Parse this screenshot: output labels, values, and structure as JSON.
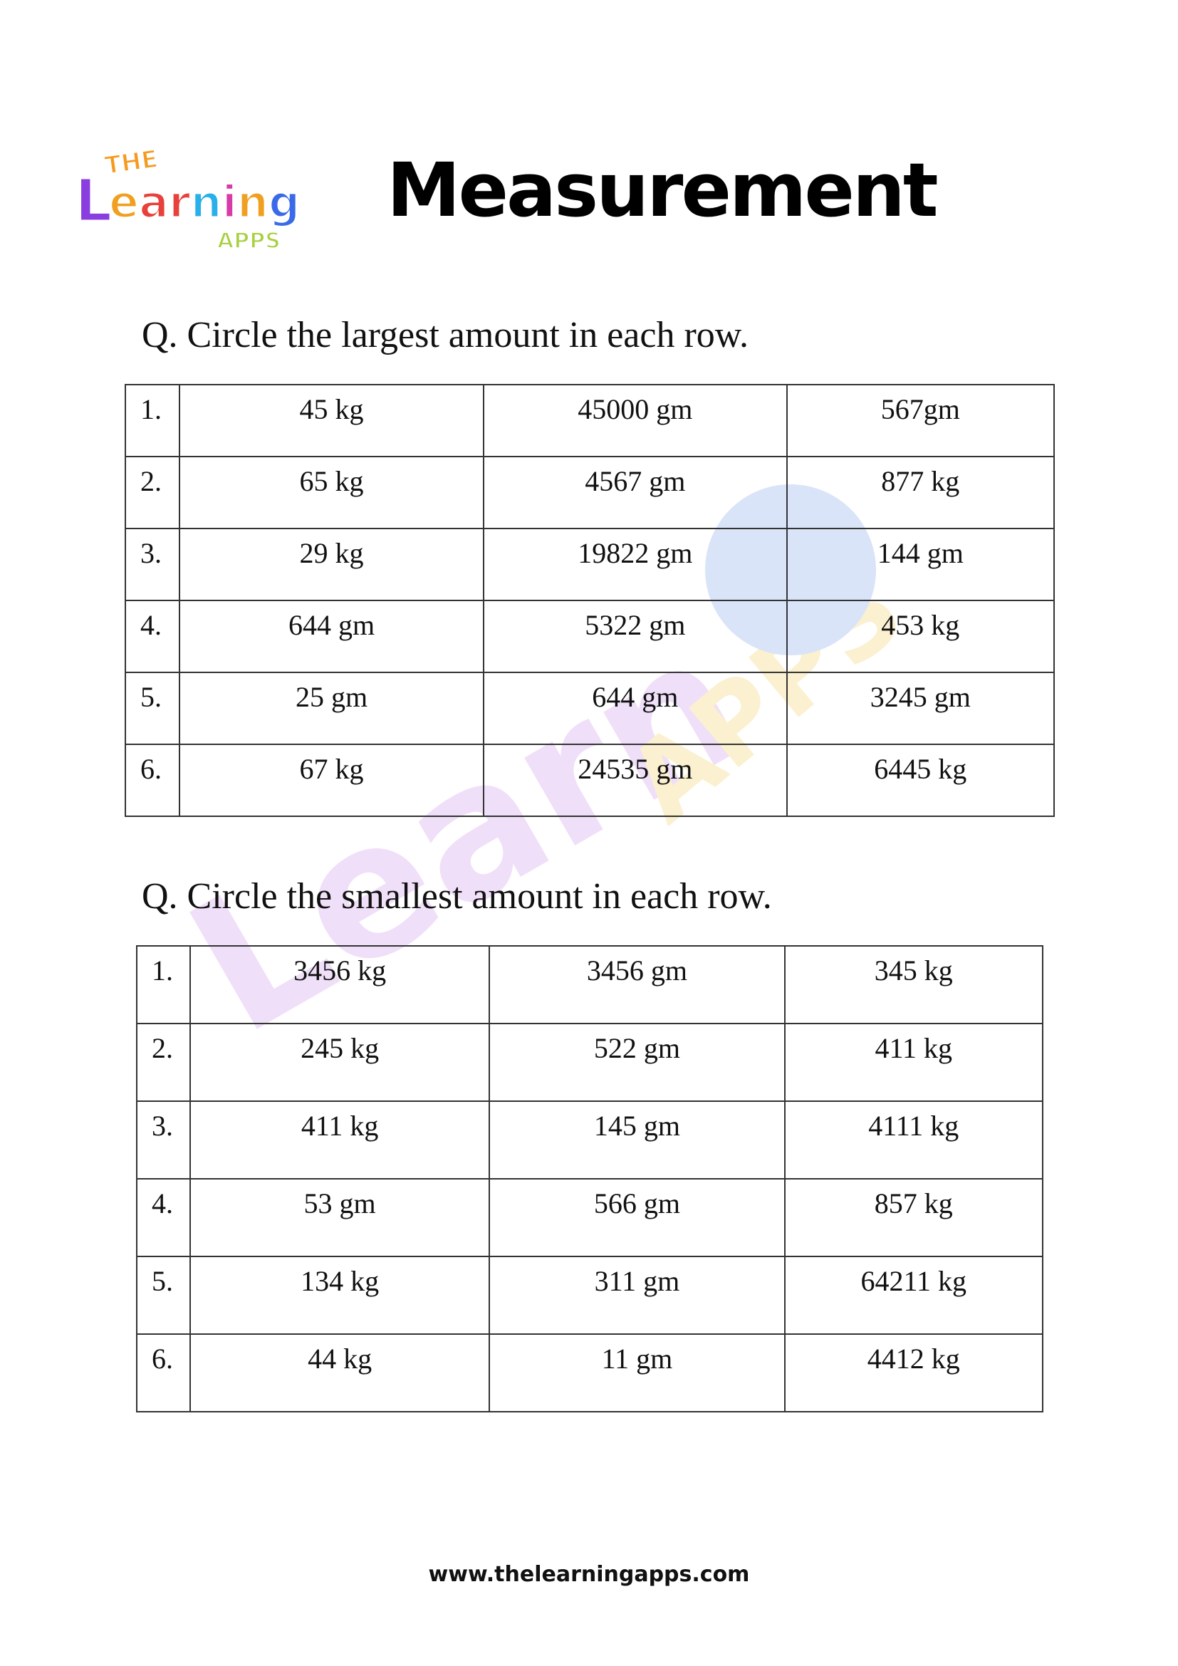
{
  "header": {
    "logo_text": {
      "top": "THE",
      "middle": "Learning",
      "bottom": "APPS"
    },
    "title": "Measurement"
  },
  "section1": {
    "question": "Q. Circle the largest amount in each row.",
    "rows": [
      [
        "1.",
        "45 kg",
        "45000 gm",
        "567gm"
      ],
      [
        "2.",
        "65 kg",
        "4567 gm",
        "877 kg"
      ],
      [
        "3.",
        "29 kg",
        "19822 gm",
        "144 gm"
      ],
      [
        "4.",
        "644 gm",
        "5322 gm",
        "453 kg"
      ],
      [
        "5.",
        "25 gm",
        "644 gm",
        "3245 gm"
      ],
      [
        "6.",
        "67 kg",
        "24535 gm",
        "6445 kg"
      ]
    ]
  },
  "section2": {
    "question": "Q. Circle the smallest amount in each row.",
    "rows": [
      [
        "1.",
        "3456 kg",
        "3456 gm",
        "345 kg"
      ],
      [
        "2.",
        "245 kg",
        "522 gm",
        "411 kg"
      ],
      [
        "3.",
        "411 kg",
        "145 gm",
        "4111 kg"
      ],
      [
        "4.",
        "53 gm",
        "566 gm",
        "857 kg"
      ],
      [
        "5.",
        "134 kg",
        "311 gm",
        "64211 kg"
      ],
      [
        "6.",
        "44 kg",
        "11 gm",
        "4412 kg"
      ]
    ]
  },
  "footer": {
    "url": "www.thelearningapps.com"
  }
}
